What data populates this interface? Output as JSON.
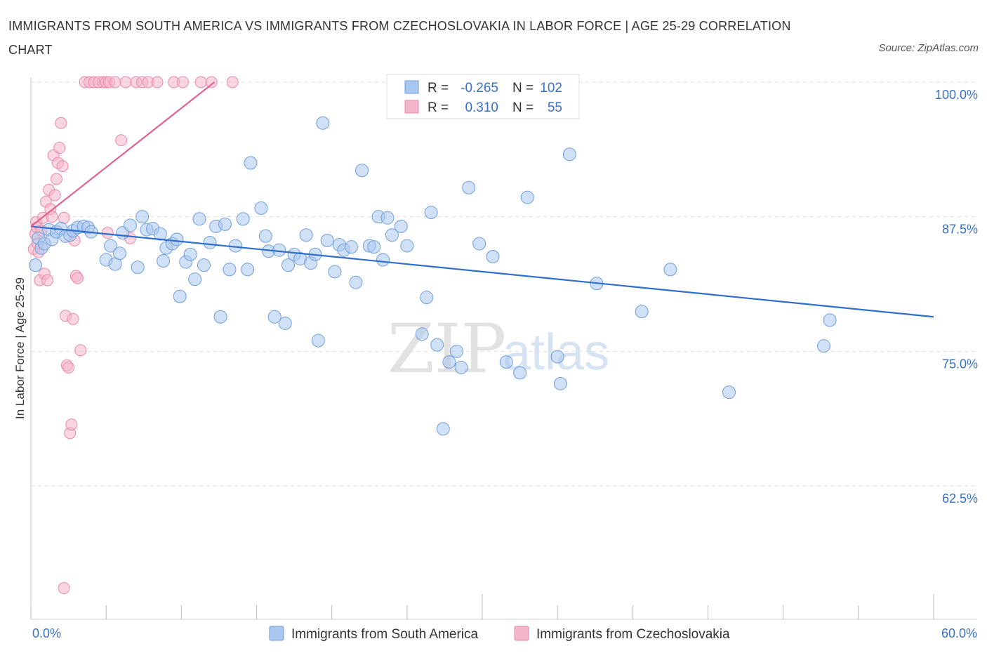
{
  "header": {
    "title": "IMMIGRANTS FROM SOUTH AMERICA VS IMMIGRANTS FROM CZECHOSLOVAKIA IN LABOR FORCE | AGE 25-29 CORRELATION CHART",
    "source": "Source: ZipAtlas.com"
  },
  "watermark": {
    "zip": "ZIP",
    "atlas": "atlas"
  },
  "legend": {
    "row1": {
      "r_label": "R =",
      "r_value": "-0.265",
      "n_label": "N =",
      "n_value": "102"
    },
    "row2": {
      "r_label": "R =",
      "r_value": "0.310",
      "n_label": "N =",
      "n_value": "55"
    }
  },
  "bottom_legend": {
    "item1": "Immigrants from South America",
    "item2": "Immigrants from Czechoslovakia"
  },
  "colors": {
    "blue_fill": "#a9c6ee",
    "blue_stroke": "#6f9fdc",
    "blue_line": "#2e6fcb",
    "pink_fill": "#f5b5c8",
    "pink_stroke": "#e98aa8",
    "pink_line": "#e0648e",
    "tick_text": "#3a72c8"
  },
  "chart_data": {
    "type": "scatter",
    "title": "IMMIGRANTS FROM SOUTH AMERICA VS IMMIGRANTS FROM CZECHOSLOVAKIA IN LABOR FORCE | AGE 25-29 CORRELATION CHART",
    "xlabel": "",
    "ylabel": "In Labor Force | Age 25-29",
    "xlim": [
      0,
      60
    ],
    "ylim": [
      50,
      100
    ],
    "x_tick_labels": [
      "0.0%",
      "60.0%"
    ],
    "y_tick_labels": [
      "100.0%",
      "87.5%",
      "75.0%",
      "62.5%"
    ],
    "y_ticks": [
      100,
      87.5,
      75,
      62.5
    ],
    "grid": true,
    "legend_position": "top-center",
    "series": [
      {
        "name": "Immigrants from South America",
        "R": -0.265,
        "N": 102,
        "trend": {
          "x": [
            0,
            60
          ],
          "y": [
            86.6,
            78.2
          ]
        },
        "points": [
          [
            0.3,
            83.0
          ],
          [
            0.5,
            85.5
          ],
          [
            0.7,
            84.6
          ],
          [
            0.9,
            85.0
          ],
          [
            1.2,
            86.3
          ],
          [
            1.4,
            85.4
          ],
          [
            1.7,
            86.1
          ],
          [
            2.0,
            86.4
          ],
          [
            2.3,
            85.7
          ],
          [
            2.6,
            85.8
          ],
          [
            2.8,
            86.2
          ],
          [
            3.1,
            86.5
          ],
          [
            3.5,
            86.6
          ],
          [
            3.8,
            86.5
          ],
          [
            4.0,
            86.1
          ],
          [
            5.0,
            83.5
          ],
          [
            5.3,
            84.8
          ],
          [
            5.6,
            83.1
          ],
          [
            5.9,
            84.1
          ],
          [
            6.1,
            86.0
          ],
          [
            6.6,
            86.7
          ],
          [
            7.1,
            82.8
          ],
          [
            7.4,
            87.5
          ],
          [
            7.7,
            86.3
          ],
          [
            8.1,
            86.4
          ],
          [
            8.6,
            85.9
          ],
          [
            8.8,
            83.4
          ],
          [
            9.0,
            84.6
          ],
          [
            9.4,
            85.0
          ],
          [
            9.7,
            85.4
          ],
          [
            9.9,
            80.1
          ],
          [
            10.3,
            83.3
          ],
          [
            10.6,
            84.0
          ],
          [
            10.9,
            81.7
          ],
          [
            11.2,
            87.3
          ],
          [
            11.5,
            83.0
          ],
          [
            11.9,
            85.1
          ],
          [
            12.3,
            86.6
          ],
          [
            12.6,
            78.2
          ],
          [
            12.9,
            86.8
          ],
          [
            13.2,
            82.6
          ],
          [
            13.6,
            84.8
          ],
          [
            14.1,
            87.3
          ],
          [
            14.4,
            82.6
          ],
          [
            14.6,
            92.5
          ],
          [
            15.3,
            88.3
          ],
          [
            15.6,
            85.7
          ],
          [
            15.8,
            84.3
          ],
          [
            16.2,
            78.2
          ],
          [
            16.5,
            84.4
          ],
          [
            16.9,
            77.6
          ],
          [
            17.1,
            83.0
          ],
          [
            17.5,
            84.0
          ],
          [
            17.9,
            83.6
          ],
          [
            18.3,
            85.8
          ],
          [
            18.6,
            83.2
          ],
          [
            18.9,
            84.0
          ],
          [
            19.1,
            76.0
          ],
          [
            19.4,
            96.2
          ],
          [
            19.7,
            85.3
          ],
          [
            20.2,
            82.4
          ],
          [
            20.5,
            84.9
          ],
          [
            20.8,
            84.4
          ],
          [
            21.3,
            84.7
          ],
          [
            21.6,
            81.4
          ],
          [
            22.0,
            91.8
          ],
          [
            22.5,
            84.8
          ],
          [
            22.8,
            84.7
          ],
          [
            23.1,
            87.5
          ],
          [
            23.4,
            83.5
          ],
          [
            23.7,
            87.4
          ],
          [
            24.0,
            85.8
          ],
          [
            24.6,
            86.6
          ],
          [
            25.0,
            84.8
          ],
          [
            26.0,
            76.6
          ],
          [
            26.3,
            80.0
          ],
          [
            26.6,
            87.9
          ],
          [
            27.0,
            75.6
          ],
          [
            27.4,
            67.8
          ],
          [
            27.8,
            74.0
          ],
          [
            28.3,
            75.0
          ],
          [
            28.6,
            73.5
          ],
          [
            29.1,
            90.2
          ],
          [
            29.8,
            85.0
          ],
          [
            30.2,
            100.0
          ],
          [
            30.7,
            83.8
          ],
          [
            31.6,
            74.0
          ],
          [
            32.5,
            73.0
          ],
          [
            33.0,
            89.3
          ],
          [
            34.3,
            100.0
          ],
          [
            35.0,
            74.5
          ],
          [
            35.2,
            72.0
          ],
          [
            35.8,
            93.3
          ],
          [
            37.6,
            81.3
          ],
          [
            40.6,
            78.7
          ],
          [
            42.5,
            82.6
          ],
          [
            46.4,
            71.2
          ],
          [
            52.7,
            75.5
          ],
          [
            53.1,
            77.9
          ]
        ]
      },
      {
        "name": "Immigrants from Czechoslovakia",
        "R": 0.31,
        "N": 55,
        "trend": {
          "x": [
            0,
            12.2
          ],
          "y": [
            86.6,
            100
          ]
        },
        "points": [
          [
            0.2,
            84.5
          ],
          [
            0.3,
            85.9
          ],
          [
            0.35,
            87.0
          ],
          [
            0.4,
            86.5
          ],
          [
            0.45,
            85.0
          ],
          [
            0.5,
            84.2
          ],
          [
            0.6,
            81.6
          ],
          [
            0.7,
            86.2
          ],
          [
            0.8,
            87.4
          ],
          [
            0.9,
            82.2
          ],
          [
            1.0,
            88.9
          ],
          [
            1.1,
            81.6
          ],
          [
            1.2,
            90.0
          ],
          [
            1.3,
            88.2
          ],
          [
            1.4,
            87.5
          ],
          [
            1.5,
            93.2
          ],
          [
            1.6,
            89.5
          ],
          [
            1.7,
            91.0
          ],
          [
            1.8,
            92.5
          ],
          [
            1.9,
            93.9
          ],
          [
            2.0,
            96.2
          ],
          [
            2.1,
            92.2
          ],
          [
            2.2,
            87.4
          ],
          [
            2.3,
            78.3
          ],
          [
            2.4,
            73.7
          ],
          [
            2.5,
            73.5
          ],
          [
            2.6,
            67.4
          ],
          [
            2.7,
            68.2
          ],
          [
            2.8,
            78.0
          ],
          [
            2.9,
            85.3
          ],
          [
            3.0,
            82.0
          ],
          [
            3.1,
            81.8
          ],
          [
            3.3,
            75.1
          ],
          [
            3.6,
            100.0
          ],
          [
            3.9,
            100.0
          ],
          [
            4.2,
            100.0
          ],
          [
            4.5,
            100.0
          ],
          [
            4.8,
            100.0
          ],
          [
            5.0,
            100.0
          ],
          [
            5.2,
            100.0
          ],
          [
            5.6,
            100.0
          ],
          [
            6.0,
            94.6
          ],
          [
            6.3,
            100.0
          ],
          [
            7.0,
            100.0
          ],
          [
            7.4,
            100.0
          ],
          [
            7.8,
            100.0
          ],
          [
            8.4,
            100.0
          ],
          [
            9.5,
            100.0
          ],
          [
            10.1,
            100.0
          ],
          [
            11.3,
            100.0
          ],
          [
            12.0,
            100.0
          ],
          [
            13.4,
            100.0
          ],
          [
            5.1,
            86.0
          ],
          [
            6.6,
            85.5
          ],
          [
            2.2,
            53.0
          ]
        ]
      }
    ]
  }
}
